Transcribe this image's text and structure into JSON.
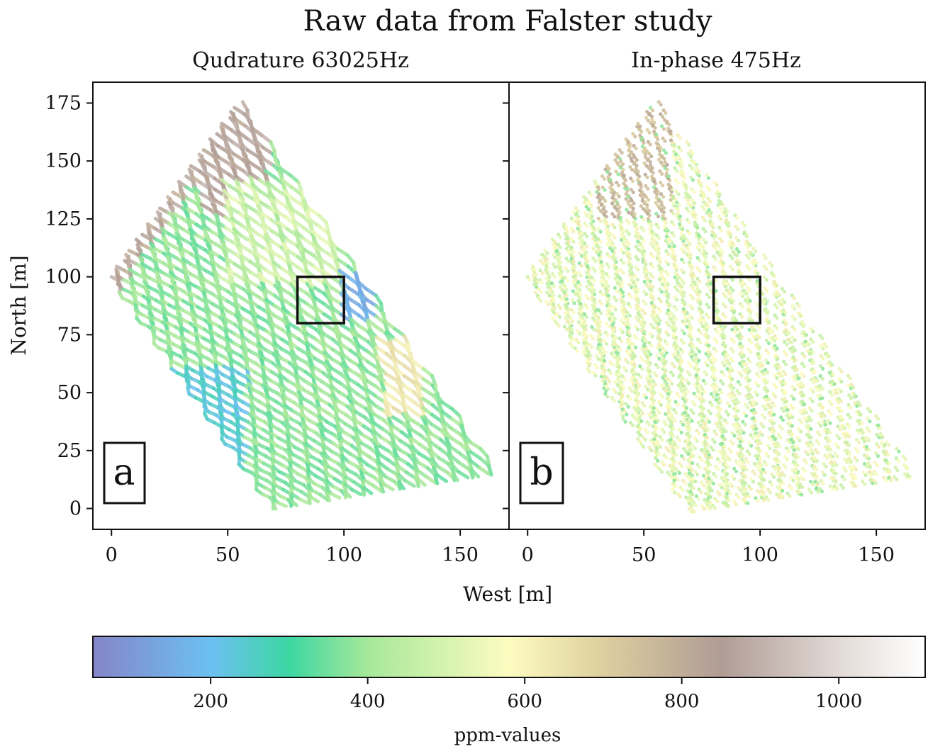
{
  "figure_title": "Raw data from Falster study",
  "colormap": {
    "label": "ppm-values",
    "range": [
      50,
      1110
    ],
    "ticks": [
      200,
      400,
      600,
      800,
      1000
    ],
    "stops": [
      {
        "v": 50,
        "color": "#8585c8"
      },
      {
        "v": 200,
        "color": "#6cc0f2"
      },
      {
        "v": 300,
        "color": "#3cd7a2"
      },
      {
        "v": 400,
        "color": "#a6e89a"
      },
      {
        "v": 580,
        "color": "#fdfcc0"
      },
      {
        "v": 700,
        "color": "#ddcf9f"
      },
      {
        "v": 850,
        "color": "#b09c95"
      },
      {
        "v": 1000,
        "color": "#e2dad6"
      },
      {
        "v": 1110,
        "color": "#ffffff"
      }
    ]
  },
  "chart_data": [
    {
      "type": "scatter",
      "title": "Qudrature 63025Hz",
      "panel_label": "a",
      "xlabel": "West [m]",
      "ylabel": "North [m]",
      "xlim": [
        -8,
        171
      ],
      "ylim": [
        -9,
        184
      ],
      "xticks": [
        0,
        50,
        100,
        150
      ],
      "yticks": [
        0,
        25,
        50,
        75,
        100,
        125,
        150,
        175
      ],
      "survey_polygon": [
        [
          0,
          100
        ],
        [
          55,
          175
        ],
        [
          165,
          15
        ],
        [
          70,
          0
        ]
      ],
      "highlight_box": {
        "x": [
          80,
          100
        ],
        "y": [
          80,
          100
        ]
      },
      "value_zones": [
        {
          "region": "north-west edge",
          "ppm": 850
        },
        {
          "region": "north ridge near x=50-65, y=125-175",
          "ppm": 880
        },
        {
          "region": "central band",
          "ppm": 380
        },
        {
          "region": "east edge near x=110, y=85-100",
          "ppm": 120
        },
        {
          "region": "south-west lines",
          "ppm": 230
        },
        {
          "region": "central-east near x=120-130, y=40-70",
          "ppm": 650
        }
      ]
    },
    {
      "type": "scatter",
      "title": "In-phase 475Hz",
      "panel_label": "b",
      "xlabel": "West [m]",
      "ylabel": "",
      "xlim": [
        -8,
        171
      ],
      "ylim": [
        -9,
        184
      ],
      "xticks": [
        0,
        50,
        100,
        150
      ],
      "yticks": [
        0,
        25,
        50,
        75,
        100,
        125,
        150,
        175
      ],
      "survey_polygon": [
        [
          0,
          100
        ],
        [
          55,
          175
        ],
        [
          165,
          15
        ],
        [
          70,
          0
        ]
      ],
      "highlight_box": {
        "x": [
          80,
          100
        ],
        "y": [
          80,
          100
        ]
      },
      "value_zones": [
        {
          "region": "overall",
          "ppm": 560
        },
        {
          "region": "north ridge near x=35-60, y=130-170",
          "ppm": 780
        },
        {
          "region": "scattered points",
          "ppm": 420
        }
      ]
    }
  ]
}
